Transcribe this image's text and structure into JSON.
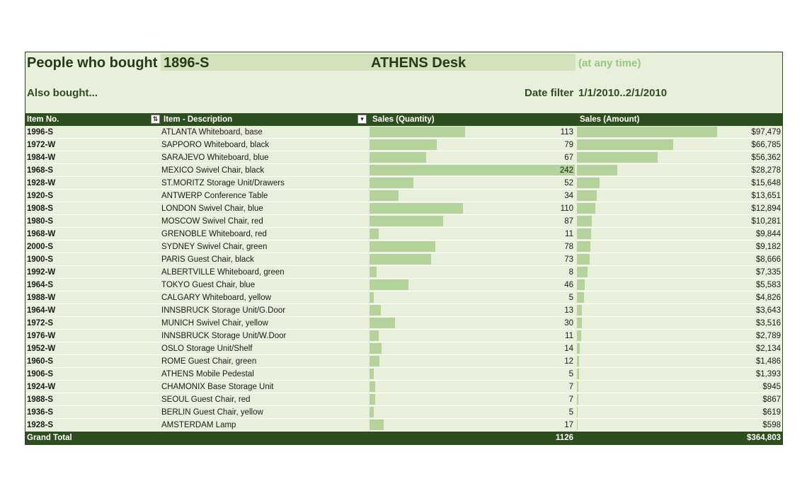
{
  "report": {
    "title": "People who bought",
    "item_no": "1896-S",
    "item_desc": "ATHENS Desk",
    "any_time": "(at any time)",
    "also_bought": "Also bought...",
    "date_filter_label": "Date filter",
    "date_filter_value": "1/1/2010..2/1/2010"
  },
  "columns": {
    "item_no": "Item No.",
    "description": "Item - Description",
    "quantity": "Sales (Quantity)",
    "amount": "Sales (Amount)"
  },
  "rows": [
    {
      "no": "1996-S",
      "desc": "ATLANTA Whiteboard, base",
      "qty": "113",
      "amt": "$97,479",
      "q": 113,
      "a": 97479
    },
    {
      "no": "1972-W",
      "desc": "SAPPORO Whiteboard, black",
      "qty": "79",
      "amt": "$66,785",
      "q": 79,
      "a": 66785
    },
    {
      "no": "1984-W",
      "desc": "SARAJEVO Whiteboard, blue",
      "qty": "67",
      "amt": "$56,362",
      "q": 67,
      "a": 56362
    },
    {
      "no": "1968-S",
      "desc": "MEXICO Swivel Chair, black",
      "qty": "242",
      "amt": "$28,278",
      "q": 242,
      "a": 28278
    },
    {
      "no": "1928-W",
      "desc": "ST.MORITZ Storage Unit/Drawers",
      "qty": "52",
      "amt": "$15,648",
      "q": 52,
      "a": 15648
    },
    {
      "no": "1920-S",
      "desc": "ANTWERP Conference Table",
      "qty": "34",
      "amt": "$13,651",
      "q": 34,
      "a": 13651
    },
    {
      "no": "1908-S",
      "desc": "LONDON Swivel Chair, blue",
      "qty": "110",
      "amt": "$12,894",
      "q": 110,
      "a": 12894
    },
    {
      "no": "1980-S",
      "desc": "MOSCOW Swivel Chair, red",
      "qty": "87",
      "amt": "$10,281",
      "q": 87,
      "a": 10281
    },
    {
      "no": "1968-W",
      "desc": "GRENOBLE Whiteboard, red",
      "qty": "11",
      "amt": "$9,844",
      "q": 11,
      "a": 9844
    },
    {
      "no": "2000-S",
      "desc": "SYDNEY Swivel Chair, green",
      "qty": "78",
      "amt": "$9,182",
      "q": 78,
      "a": 9182
    },
    {
      "no": "1900-S",
      "desc": "PARIS Guest Chair, black",
      "qty": "73",
      "amt": "$8,666",
      "q": 73,
      "a": 8666
    },
    {
      "no": "1992-W",
      "desc": "ALBERTVILLE Whiteboard, green",
      "qty": "8",
      "amt": "$7,335",
      "q": 8,
      "a": 7335
    },
    {
      "no": "1964-S",
      "desc": "TOKYO Guest Chair, blue",
      "qty": "46",
      "amt": "$5,583",
      "q": 46,
      "a": 5583
    },
    {
      "no": "1988-W",
      "desc": "CALGARY Whiteboard, yellow",
      "qty": "5",
      "amt": "$4,826",
      "q": 5,
      "a": 4826
    },
    {
      "no": "1964-W",
      "desc": "INNSBRUCK Storage Unit/G.Door",
      "qty": "13",
      "amt": "$3,643",
      "q": 13,
      "a": 3643
    },
    {
      "no": "1972-S",
      "desc": "MUNICH Swivel Chair, yellow",
      "qty": "30",
      "amt": "$3,516",
      "q": 30,
      "a": 3516
    },
    {
      "no": "1976-W",
      "desc": "INNSBRUCK Storage Unit/W.Door",
      "qty": "11",
      "amt": "$2,789",
      "q": 11,
      "a": 2789
    },
    {
      "no": "1952-W",
      "desc": "OSLO Storage Unit/Shelf",
      "qty": "14",
      "amt": "$2,134",
      "q": 14,
      "a": 2134
    },
    {
      "no": "1960-S",
      "desc": "ROME Guest Chair, green",
      "qty": "12",
      "amt": "$1,486",
      "q": 12,
      "a": 1486
    },
    {
      "no": "1906-S",
      "desc": "ATHENS Mobile Pedestal",
      "qty": "5",
      "amt": "$1,393",
      "q": 5,
      "a": 1393
    },
    {
      "no": "1924-W",
      "desc": "CHAMONIX Base Storage Unit",
      "qty": "7",
      "amt": "$945",
      "q": 7,
      "a": 945
    },
    {
      "no": "1988-S",
      "desc": "SEOUL Guest Chair, red",
      "qty": "7",
      "amt": "$867",
      "q": 7,
      "a": 867
    },
    {
      "no": "1936-S",
      "desc": "BERLIN Guest Chair, yellow",
      "qty": "5",
      "amt": "$619",
      "q": 5,
      "a": 619
    },
    {
      "no": "1928-S",
      "desc": "AMSTERDAM Lamp",
      "qty": "17",
      "amt": "$598",
      "q": 17,
      "a": 598
    }
  ],
  "totals": {
    "label": "Grand Total",
    "qty": "1126",
    "amt": "$364,803"
  },
  "icons": {
    "item_no_filter": "sort-filter-icon",
    "description_filter": "filter-dropdown-icon"
  },
  "colors": {
    "header_bg": "#2f4e20",
    "panel_bg": "#e8f0dc",
    "item_box_bg": "#d3e2bd",
    "data_bar": "#b3d39a",
    "accent_text": "#9cc47f"
  }
}
